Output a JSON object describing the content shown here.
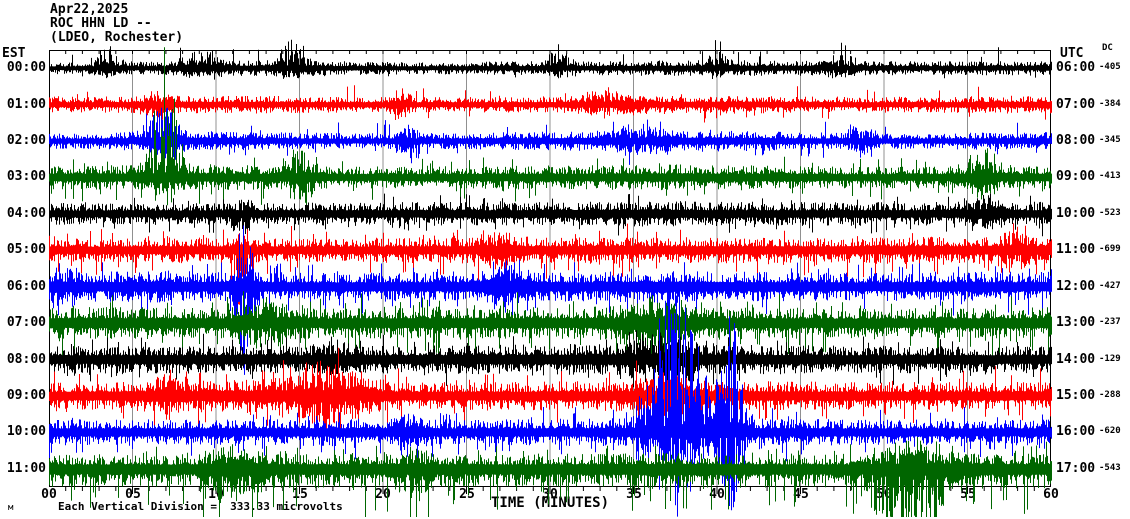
{
  "header": {
    "date": "Apr22,2025",
    "station_line": "ROC HHN LD --",
    "source_line": "(LDEO, Rochester)"
  },
  "axes": {
    "left_label": "EST",
    "right_label": "UTC",
    "dc_label": "DC",
    "x_label": "TIME (MINUTES)",
    "x_ticks": [
      "00",
      "05",
      "10",
      "15",
      "20",
      "25",
      "30",
      "35",
      "40",
      "45",
      "50",
      "55",
      "60"
    ]
  },
  "footer": {
    "note": "Each Vertical Division =  333.33 microvolts",
    "watermark": "м"
  },
  "colors": {
    "black": "#000000",
    "red": "#ff0000",
    "blue": "#0000ff",
    "green": "#006600",
    "grid": "#909090",
    "frame": "#000000"
  },
  "chart_data": {
    "type": "line",
    "subtype": "seismogram-helicorder",
    "title": "ROC HHN LD -- (LDEO, Rochester) Apr22,2025",
    "x_axis_label": "TIME (MINUTES)",
    "x_range_minutes": [
      0,
      60
    ],
    "grid_interval_minutes": 5,
    "vertical_division_microvolts": 333.33,
    "row_order_note": "12 hourly traces, colors cycle black/red/blue/green, EST on left, UTC on right, DC offset at far right",
    "rows": [
      {
        "est": "00:00",
        "utc": "06:00",
        "dc": "-405",
        "color": "black",
        "seed": 11,
        "amp": [
          6,
          7,
          8,
          7,
          6,
          7,
          7,
          8,
          8,
          7,
          7,
          7
        ],
        "sp": 0.02,
        "su": 15,
        "sd": 6,
        "dmul": 1,
        "events": [
          {
            "m": 3.5,
            "w": 0.8,
            "up": 22,
            "down": 6
          },
          {
            "m": 9,
            "w": 1.2,
            "up": 18,
            "down": 6
          },
          {
            "m": 14.6,
            "w": 0.9,
            "up": 26,
            "down": 8
          },
          {
            "m": 30.5,
            "w": 0.6,
            "up": 22,
            "down": 6
          },
          {
            "m": 40,
            "w": 0.5,
            "up": 28,
            "down": 6
          },
          {
            "m": 47.5,
            "w": 0.8,
            "up": 22,
            "down": 6
          }
        ]
      },
      {
        "est": "01:00",
        "utc": "07:00",
        "dc": "-384",
        "color": "red",
        "seed": 22,
        "amp": [
          8,
          9,
          9,
          8,
          8,
          8,
          9,
          9,
          9,
          8,
          8,
          9
        ],
        "sp": 0.02,
        "su": 12,
        "sd": 12,
        "dmul": 1,
        "events": [
          {
            "m": 6.3,
            "w": 0.6,
            "up": 10,
            "down": 16
          },
          {
            "m": 21,
            "w": 0.5,
            "up": 12,
            "down": 14
          },
          {
            "m": 33.5,
            "w": 1.5,
            "up": 10,
            "down": 8
          }
        ]
      },
      {
        "est": "02:00",
        "utc": "08:00",
        "dc": "-345",
        "color": "blue",
        "seed": 33,
        "amp": [
          8,
          11,
          9,
          8,
          8,
          9,
          10,
          11,
          10,
          8,
          8,
          9
        ],
        "sp": 0.025,
        "su": 14,
        "sd": 12,
        "dmul": 1,
        "events": [
          {
            "m": 6.8,
            "w": 0.9,
            "up": 30,
            "down": 12
          },
          {
            "m": 21.5,
            "w": 0.6,
            "up": 14,
            "down": 20
          },
          {
            "m": 35,
            "w": 1.5,
            "up": 12,
            "down": 10
          },
          {
            "m": 48.5,
            "w": 0.8,
            "up": 14,
            "down": 10
          }
        ]
      },
      {
        "est": "03:00",
        "utc": "09:00",
        "dc": "-413",
        "color": "green",
        "seed": 44,
        "amp": [
          12,
          14,
          12,
          11,
          11,
          12,
          12,
          13,
          12,
          11,
          11,
          12
        ],
        "sp": 0.04,
        "su": 14,
        "sd": 18,
        "dmul": 1,
        "events": [
          {
            "m": 6.9,
            "w": 0.8,
            "up": 125,
            "down": 28
          },
          {
            "m": 15,
            "w": 0.8,
            "up": 26,
            "down": 22
          },
          {
            "m": 56,
            "w": 1,
            "up": 18,
            "down": 14
          }
        ]
      },
      {
        "est": "04:00",
        "utc": "10:00",
        "dc": "-523",
        "color": "black",
        "seed": 55,
        "amp": [
          11,
          11,
          11,
          12,
          12,
          12,
          13,
          13,
          12,
          12,
          12,
          12
        ],
        "sp": 0.04,
        "su": 12,
        "sd": 12,
        "dmul": 1,
        "events": [
          {
            "m": 11.5,
            "w": 0.6,
            "up": 10,
            "down": 20
          },
          {
            "m": 56,
            "w": 1,
            "up": 12,
            "down": 10
          }
        ]
      },
      {
        "est": "05:00",
        "utc": "11:00",
        "dc": "-699",
        "color": "red",
        "seed": 66,
        "amp": [
          12,
          13,
          12,
          12,
          13,
          13,
          14,
          13,
          13,
          13,
          14,
          13
        ],
        "sp": 0.05,
        "su": 14,
        "sd": 18,
        "dmul": 1,
        "events": [
          {
            "m": 11.6,
            "w": 0.7,
            "up": 14,
            "down": 55
          },
          {
            "m": 27,
            "w": 1,
            "up": 14,
            "down": 16
          },
          {
            "m": 58,
            "w": 1,
            "up": 14,
            "down": 14
          }
        ]
      },
      {
        "est": "06:00",
        "utc": "12:00",
        "dc": "-427",
        "color": "blue",
        "seed": 77,
        "amp": [
          15,
          16,
          15,
          14,
          15,
          15,
          15,
          16,
          15,
          14,
          15,
          15
        ],
        "sp": 0.05,
        "su": 16,
        "sd": 18,
        "dmul": 1,
        "events": [
          {
            "m": 11.7,
            "w": 0.5,
            "up": 60,
            "down": 110
          },
          {
            "m": 1,
            "w": 0.8,
            "up": 18,
            "down": 14
          },
          {
            "m": 27.5,
            "w": 1.2,
            "up": 14,
            "down": 16
          }
        ]
      },
      {
        "est": "07:00",
        "utc": "13:00",
        "dc": "-237",
        "color": "green",
        "seed": 88,
        "amp": [
          16,
          16,
          15,
          15,
          16,
          16,
          16,
          17,
          16,
          15,
          15,
          16
        ],
        "sp": 0.06,
        "su": 16,
        "sd": 22,
        "dmul": 1,
        "events": [
          {
            "m": 13,
            "w": 1.5,
            "up": 16,
            "down": 26
          },
          {
            "m": 36,
            "w": 2,
            "up": 16,
            "down": 18
          }
        ]
      },
      {
        "est": "08:00",
        "utc": "14:00",
        "dc": "-129",
        "color": "black",
        "seed": 99,
        "amp": [
          14,
          14,
          15,
          14,
          14,
          15,
          16,
          16,
          15,
          14,
          14,
          14
        ],
        "sp": 0.05,
        "su": 14,
        "sd": 14,
        "dmul": 1,
        "events": [
          {
            "m": 36.5,
            "w": 1.8,
            "up": 26,
            "down": 16
          },
          {
            "m": 17,
            "w": 1,
            "up": 12,
            "down": 12
          }
        ]
      },
      {
        "est": "09:00",
        "utc": "15:00",
        "dc": "-288",
        "color": "red",
        "seed": 110,
        "amp": [
          14,
          16,
          17,
          16,
          14,
          14,
          15,
          16,
          15,
          14,
          14,
          14
        ],
        "sp": 0.06,
        "su": 18,
        "sd": 18,
        "dmul": 1,
        "events": [
          {
            "m": 16.5,
            "w": 2.2,
            "up": 30,
            "down": 26
          },
          {
            "m": 36.5,
            "w": 1.5,
            "up": 18,
            "down": 16
          },
          {
            "m": 7,
            "w": 0.8,
            "up": 16,
            "down": 14
          }
        ]
      },
      {
        "est": "10:00",
        "utc": "16:00",
        "dc": "-620",
        "color": "blue",
        "seed": 121,
        "amp": [
          13,
          13,
          13,
          14,
          13,
          13,
          14,
          15,
          14,
          13,
          13,
          13
        ],
        "sp": 0.05,
        "su": 14,
        "sd": 16,
        "dmul": 1,
        "events": [
          {
            "m": 37.5,
            "w": 1.6,
            "up": 160,
            "down": 75
          },
          {
            "m": 40.8,
            "w": 0.8,
            "up": 120,
            "down": 70
          },
          {
            "m": 21.5,
            "w": 0.8,
            "up": 16,
            "down": 16
          }
        ]
      },
      {
        "est": "11:00",
        "utc": "17:00",
        "dc": "-543",
        "color": "green",
        "seed": 132,
        "amp": [
          14,
          14,
          15,
          15,
          14,
          14,
          15,
          16,
          15,
          14,
          16,
          15
        ],
        "sp": 0.08,
        "su": 14,
        "sd": 26,
        "dmul": 1.3,
        "events": [
          {
            "m": 51.5,
            "w": 2.5,
            "up": 16,
            "down": 45
          },
          {
            "m": 11,
            "w": 1.5,
            "up": 14,
            "down": 24
          },
          {
            "m": 22,
            "w": 1,
            "up": 14,
            "down": 20
          }
        ]
      }
    ]
  }
}
